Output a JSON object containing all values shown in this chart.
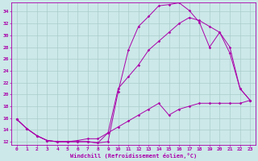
{
  "xlabel": "Windchill (Refroidissement éolien,°C)",
  "bg_color": "#cce8e8",
  "line_color": "#aa00aa",
  "grid_color": "#aacccc",
  "xlim": [
    -0.5,
    23.5
  ],
  "ylim": [
    11.5,
    35.5
  ],
  "yticks": [
    12,
    14,
    16,
    18,
    20,
    22,
    24,
    26,
    28,
    30,
    32,
    34
  ],
  "xticks": [
    0,
    1,
    2,
    3,
    4,
    5,
    6,
    7,
    8,
    9,
    10,
    11,
    12,
    13,
    14,
    15,
    16,
    17,
    18,
    19,
    20,
    21,
    22,
    23
  ],
  "line1_x": [
    0,
    1,
    2,
    3,
    4,
    5,
    6,
    7,
    8,
    9,
    10,
    11,
    12,
    13,
    14,
    15,
    16,
    17,
    18,
    19,
    20,
    21,
    22,
    23
  ],
  "line1_y": [
    15.8,
    14.2,
    13.0,
    12.2,
    12.0,
    12.0,
    12.0,
    12.0,
    11.8,
    12.0,
    20.5,
    27.5,
    31.5,
    33.2,
    35.0,
    35.2,
    35.5,
    34.2,
    32.2,
    28.0,
    30.5,
    27.0,
    21.0,
    19.0
  ],
  "line2_x": [
    0,
    1,
    2,
    3,
    4,
    5,
    6,
    7,
    8,
    9,
    10,
    11,
    12,
    13,
    14,
    15,
    16,
    17,
    18,
    19,
    20,
    21,
    22,
    23
  ],
  "line2_y": [
    15.8,
    14.2,
    13.0,
    12.2,
    12.0,
    12.0,
    12.0,
    12.0,
    11.8,
    13.5,
    21.0,
    23.0,
    25.0,
    27.5,
    29.0,
    30.5,
    32.0,
    33.0,
    32.5,
    31.5,
    30.5,
    28.0,
    21.0,
    19.0
  ],
  "line3_x": [
    0,
    1,
    2,
    3,
    4,
    5,
    6,
    7,
    8,
    9,
    10,
    11,
    12,
    13,
    14,
    15,
    16,
    17,
    18,
    19,
    20,
    21,
    22,
    23
  ],
  "line3_y": [
    15.8,
    14.2,
    13.0,
    12.2,
    12.0,
    12.0,
    12.2,
    12.5,
    12.5,
    13.5,
    14.5,
    15.5,
    16.5,
    17.5,
    18.5,
    16.5,
    17.5,
    18.0,
    18.5,
    18.5,
    18.5,
    18.5,
    18.5,
    19.0
  ]
}
